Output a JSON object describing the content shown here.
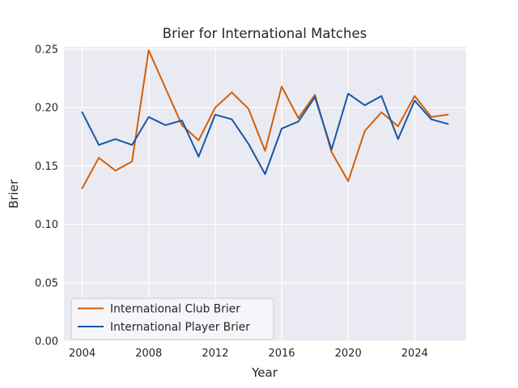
{
  "title": "Brier for International Matches",
  "axes": {
    "xlabel": "Year",
    "ylabel": "Brier"
  },
  "legend": {
    "entries": [
      {
        "label": "International Club Brier",
        "color": "#d45f06"
      },
      {
        "label": "International Player Brier",
        "color": "#1757a6"
      }
    ]
  },
  "chart_data": {
    "type": "line",
    "title": "Brier for International Matches",
    "xlabel": "Year",
    "ylabel": "Brier",
    "x": [
      2004,
      2005,
      2006,
      2007,
      2008,
      2009,
      2010,
      2011,
      2012,
      2013,
      2014,
      2015,
      2016,
      2017,
      2018,
      2019,
      2020,
      2021,
      2022,
      2023,
      2024,
      2025,
      2026
    ],
    "series": [
      {
        "name": "International Club Brier",
        "color": "#d45f06",
        "values": [
          0.131,
          0.157,
          0.146,
          0.154,
          0.249,
          0.217,
          0.185,
          0.172,
          0.2,
          0.213,
          0.199,
          0.163,
          0.218,
          0.191,
          0.211,
          0.162,
          0.137,
          0.18,
          0.196,
          0.184,
          0.21,
          0.192,
          0.194
        ]
      },
      {
        "name": "International Player Brier",
        "color": "#1757a6",
        "values": [
          0.196,
          0.168,
          0.173,
          0.168,
          0.192,
          0.185,
          0.189,
          0.158,
          0.194,
          0.19,
          0.169,
          0.143,
          0.182,
          0.188,
          0.209,
          0.164,
          0.212,
          0.202,
          0.21,
          0.173,
          0.206,
          0.19,
          0.186
        ]
      }
    ],
    "xlim": [
      2002.9,
      2027.1
    ],
    "ylim": [
      0.0,
      0.252
    ],
    "xticks": [
      2004,
      2008,
      2012,
      2016,
      2020,
      2024
    ],
    "yticks": [
      "0.00",
      "0.05",
      "0.10",
      "0.15",
      "0.20",
      "0.25"
    ],
    "grid": true,
    "grid_color": "#ffffff",
    "background": "#eaeaf2",
    "legend_position": "lower left",
    "line_width": 2
  }
}
